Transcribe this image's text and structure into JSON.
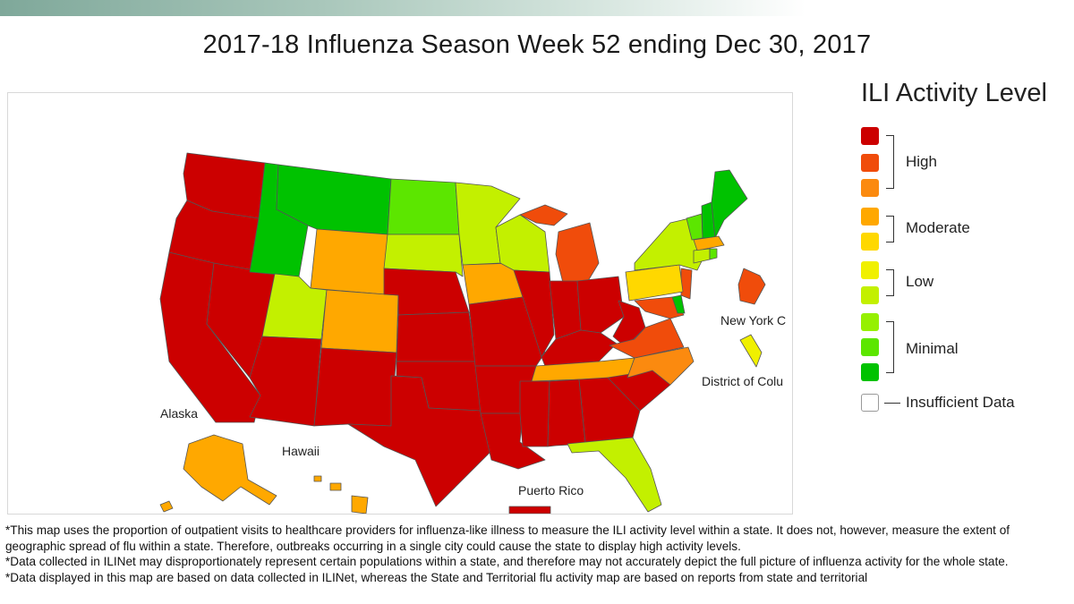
{
  "title": "2017-18 Influenza Season Week 52 ending Dec 30, 2017",
  "colors": {
    "high_1": "#cc0000",
    "high_2": "#f04c0b",
    "high_3": "#fb8a0f",
    "moderate_1": "#ffa800",
    "moderate_2": "#ffd800",
    "low_1": "#f0f000",
    "low_2": "#c3f000",
    "minimal_1": "#96f000",
    "minimal_2": "#5ce600",
    "minimal_3": "#00c200",
    "insufficient": "#ffffff"
  },
  "legend": {
    "title": "ILI Activity Level",
    "groups": {
      "high": "High",
      "moderate": "Moderate",
      "low": "Low",
      "minimal": "Minimal",
      "insufficient": "Insufficient Data"
    }
  },
  "map": {
    "labels": {
      "alaska": "Alaska",
      "hawaii": "Hawaii",
      "puerto_rico": "Puerto Rico",
      "new_york_city": "New York C",
      "district_of_columbia": "District of Colu"
    }
  },
  "notes": [
    "*This map uses the proportion of outpatient visits to healthcare providers for influenza-like illness to measure the ILI activity level within a state. It does not, however, measure the extent of geographic spread of flu within a state. Therefore, outbreaks occurring in a single city could cause the state to display high activity levels.",
    "*Data collected in ILINet may disproportionately represent certain populations within a state, and therefore may not accurately depict the full picture of influenza activity for the whole state.",
    "*Data displayed in this map are based on data collected in ILINet, whereas the State and Territorial flu activity map are based on reports from state and territorial"
  ]
}
